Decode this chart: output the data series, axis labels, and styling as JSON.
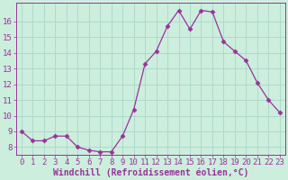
{
  "x": [
    0,
    1,
    2,
    3,
    4,
    5,
    6,
    7,
    8,
    9,
    10,
    11,
    12,
    13,
    14,
    15,
    16,
    17,
    18,
    19,
    20,
    21,
    22,
    23
  ],
  "y": [
    9.0,
    8.4,
    8.4,
    8.7,
    8.7,
    8.0,
    7.8,
    7.7,
    7.7,
    8.7,
    10.4,
    13.3,
    14.1,
    15.7,
    16.7,
    15.5,
    16.7,
    16.6,
    14.7,
    14.1,
    13.5,
    12.1,
    11.0,
    10.2
  ],
  "line_color": "#993399",
  "marker": "D",
  "marker_size": 2.5,
  "bg_color": "#cceedd",
  "grid_color": "#b0d8cc",
  "xlabel": "Windchill (Refroidissement éolien,°C)",
  "xlabel_color": "#993399",
  "tick_color": "#993399",
  "ylim": [
    7.5,
    17.2
  ],
  "xlim": [
    -0.5,
    23.5
  ],
  "yticks": [
    8,
    9,
    10,
    11,
    12,
    13,
    14,
    15,
    16
  ],
  "xticks": [
    0,
    1,
    2,
    3,
    4,
    5,
    6,
    7,
    8,
    9,
    10,
    11,
    12,
    13,
    14,
    15,
    16,
    17,
    18,
    19,
    20,
    21,
    22,
    23
  ],
  "tick_fontsize": 6.5,
  "xlabel_fontsize": 7.0
}
